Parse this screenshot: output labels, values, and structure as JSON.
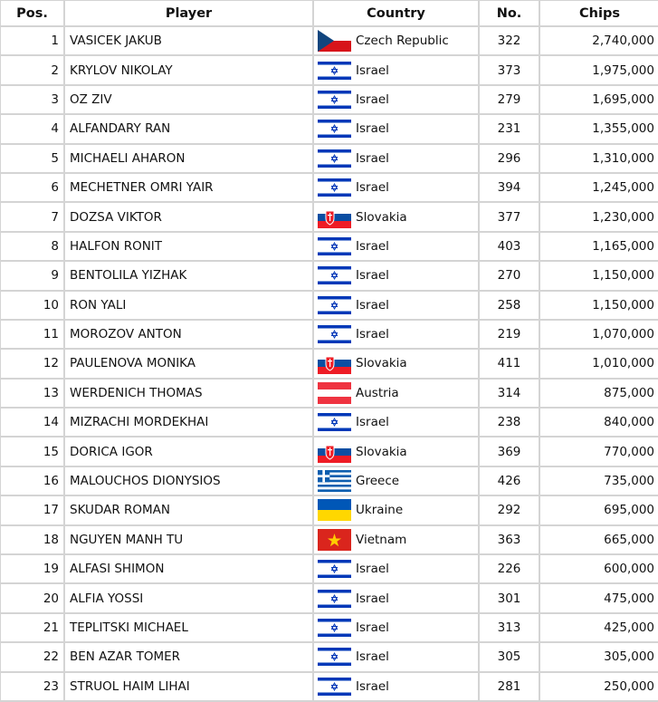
{
  "headers": {
    "pos": "Pos.",
    "player": "Player",
    "country": "Country",
    "no": "No.",
    "chips": "Chips"
  },
  "rows": [
    {
      "pos": "1",
      "player": "VASICEK JAKUB",
      "country": "Czech Republic",
      "flag": "cz",
      "no": "322",
      "chips": "2,740,000"
    },
    {
      "pos": "2",
      "player": "KRYLOV NIKOLAY",
      "country": "Israel",
      "flag": "il",
      "no": "373",
      "chips": "1,975,000"
    },
    {
      "pos": "3",
      "player": "OZ ZIV",
      "country": "Israel",
      "flag": "il",
      "no": "279",
      "chips": "1,695,000"
    },
    {
      "pos": "4",
      "player": "ALFANDARY RAN",
      "country": "Israel",
      "flag": "il",
      "no": "231",
      "chips": "1,355,000"
    },
    {
      "pos": "5",
      "player": "MICHAELI AHARON",
      "country": "Israel",
      "flag": "il",
      "no": "296",
      "chips": "1,310,000"
    },
    {
      "pos": "6",
      "player": "MECHETNER OMRI YAIR",
      "country": "Israel",
      "flag": "il",
      "no": "394",
      "chips": "1,245,000"
    },
    {
      "pos": "7",
      "player": "DOZSA VIKTOR",
      "country": "Slovakia",
      "flag": "sk",
      "no": "377",
      "chips": "1,230,000"
    },
    {
      "pos": "8",
      "player": "HALFON RONIT",
      "country": "Israel",
      "flag": "il",
      "no": "403",
      "chips": "1,165,000"
    },
    {
      "pos": "9",
      "player": "BENTOLILA YIZHAK",
      "country": "Israel",
      "flag": "il",
      "no": "270",
      "chips": "1,150,000"
    },
    {
      "pos": "10",
      "player": "RON YALI",
      "country": "Israel",
      "flag": "il",
      "no": "258",
      "chips": "1,150,000"
    },
    {
      "pos": "11",
      "player": "MOROZOV ANTON",
      "country": "Israel",
      "flag": "il",
      "no": "219",
      "chips": "1,070,000"
    },
    {
      "pos": "12",
      "player": "PAULENOVA MONIKA",
      "country": "Slovakia",
      "flag": "sk",
      "no": "411",
      "chips": "1,010,000"
    },
    {
      "pos": "13",
      "player": "WERDENICH THOMAS",
      "country": "Austria",
      "flag": "at",
      "no": "314",
      "chips": "875,000"
    },
    {
      "pos": "14",
      "player": "MIZRACHI MORDEKHAI",
      "country": "Israel",
      "flag": "il",
      "no": "238",
      "chips": "840,000"
    },
    {
      "pos": "15",
      "player": "DORICA IGOR",
      "country": "Slovakia",
      "flag": "sk",
      "no": "369",
      "chips": "770,000"
    },
    {
      "pos": "16",
      "player": "MALOUCHOS DIONYSIOS",
      "country": "Greece",
      "flag": "gr",
      "no": "426",
      "chips": "735,000"
    },
    {
      "pos": "17",
      "player": "SKUDAR ROMAN",
      "country": "Ukraine",
      "flag": "ua",
      "no": "292",
      "chips": "695,000"
    },
    {
      "pos": "18",
      "player": "NGUYEN MANH TU",
      "country": "Vietnam",
      "flag": "vn",
      "no": "363",
      "chips": "665,000"
    },
    {
      "pos": "19",
      "player": "ALFASI SHIMON",
      "country": "Israel",
      "flag": "il",
      "no": "226",
      "chips": "600,000"
    },
    {
      "pos": "20",
      "player": "ALFIA YOSSI",
      "country": "Israel",
      "flag": "il",
      "no": "301",
      "chips": "475,000"
    },
    {
      "pos": "21",
      "player": "TEPLITSKI MICHAEL",
      "country": "Israel",
      "flag": "il",
      "no": "313",
      "chips": "425,000"
    },
    {
      "pos": "22",
      "player": "BEN AZAR TOMER",
      "country": "Israel",
      "flag": "il",
      "no": "305",
      "chips": "305,000"
    },
    {
      "pos": "23",
      "player": "STRUOL HAIM LIHAI",
      "country": "Israel",
      "flag": "il",
      "no": "281",
      "chips": "250,000"
    }
  ]
}
